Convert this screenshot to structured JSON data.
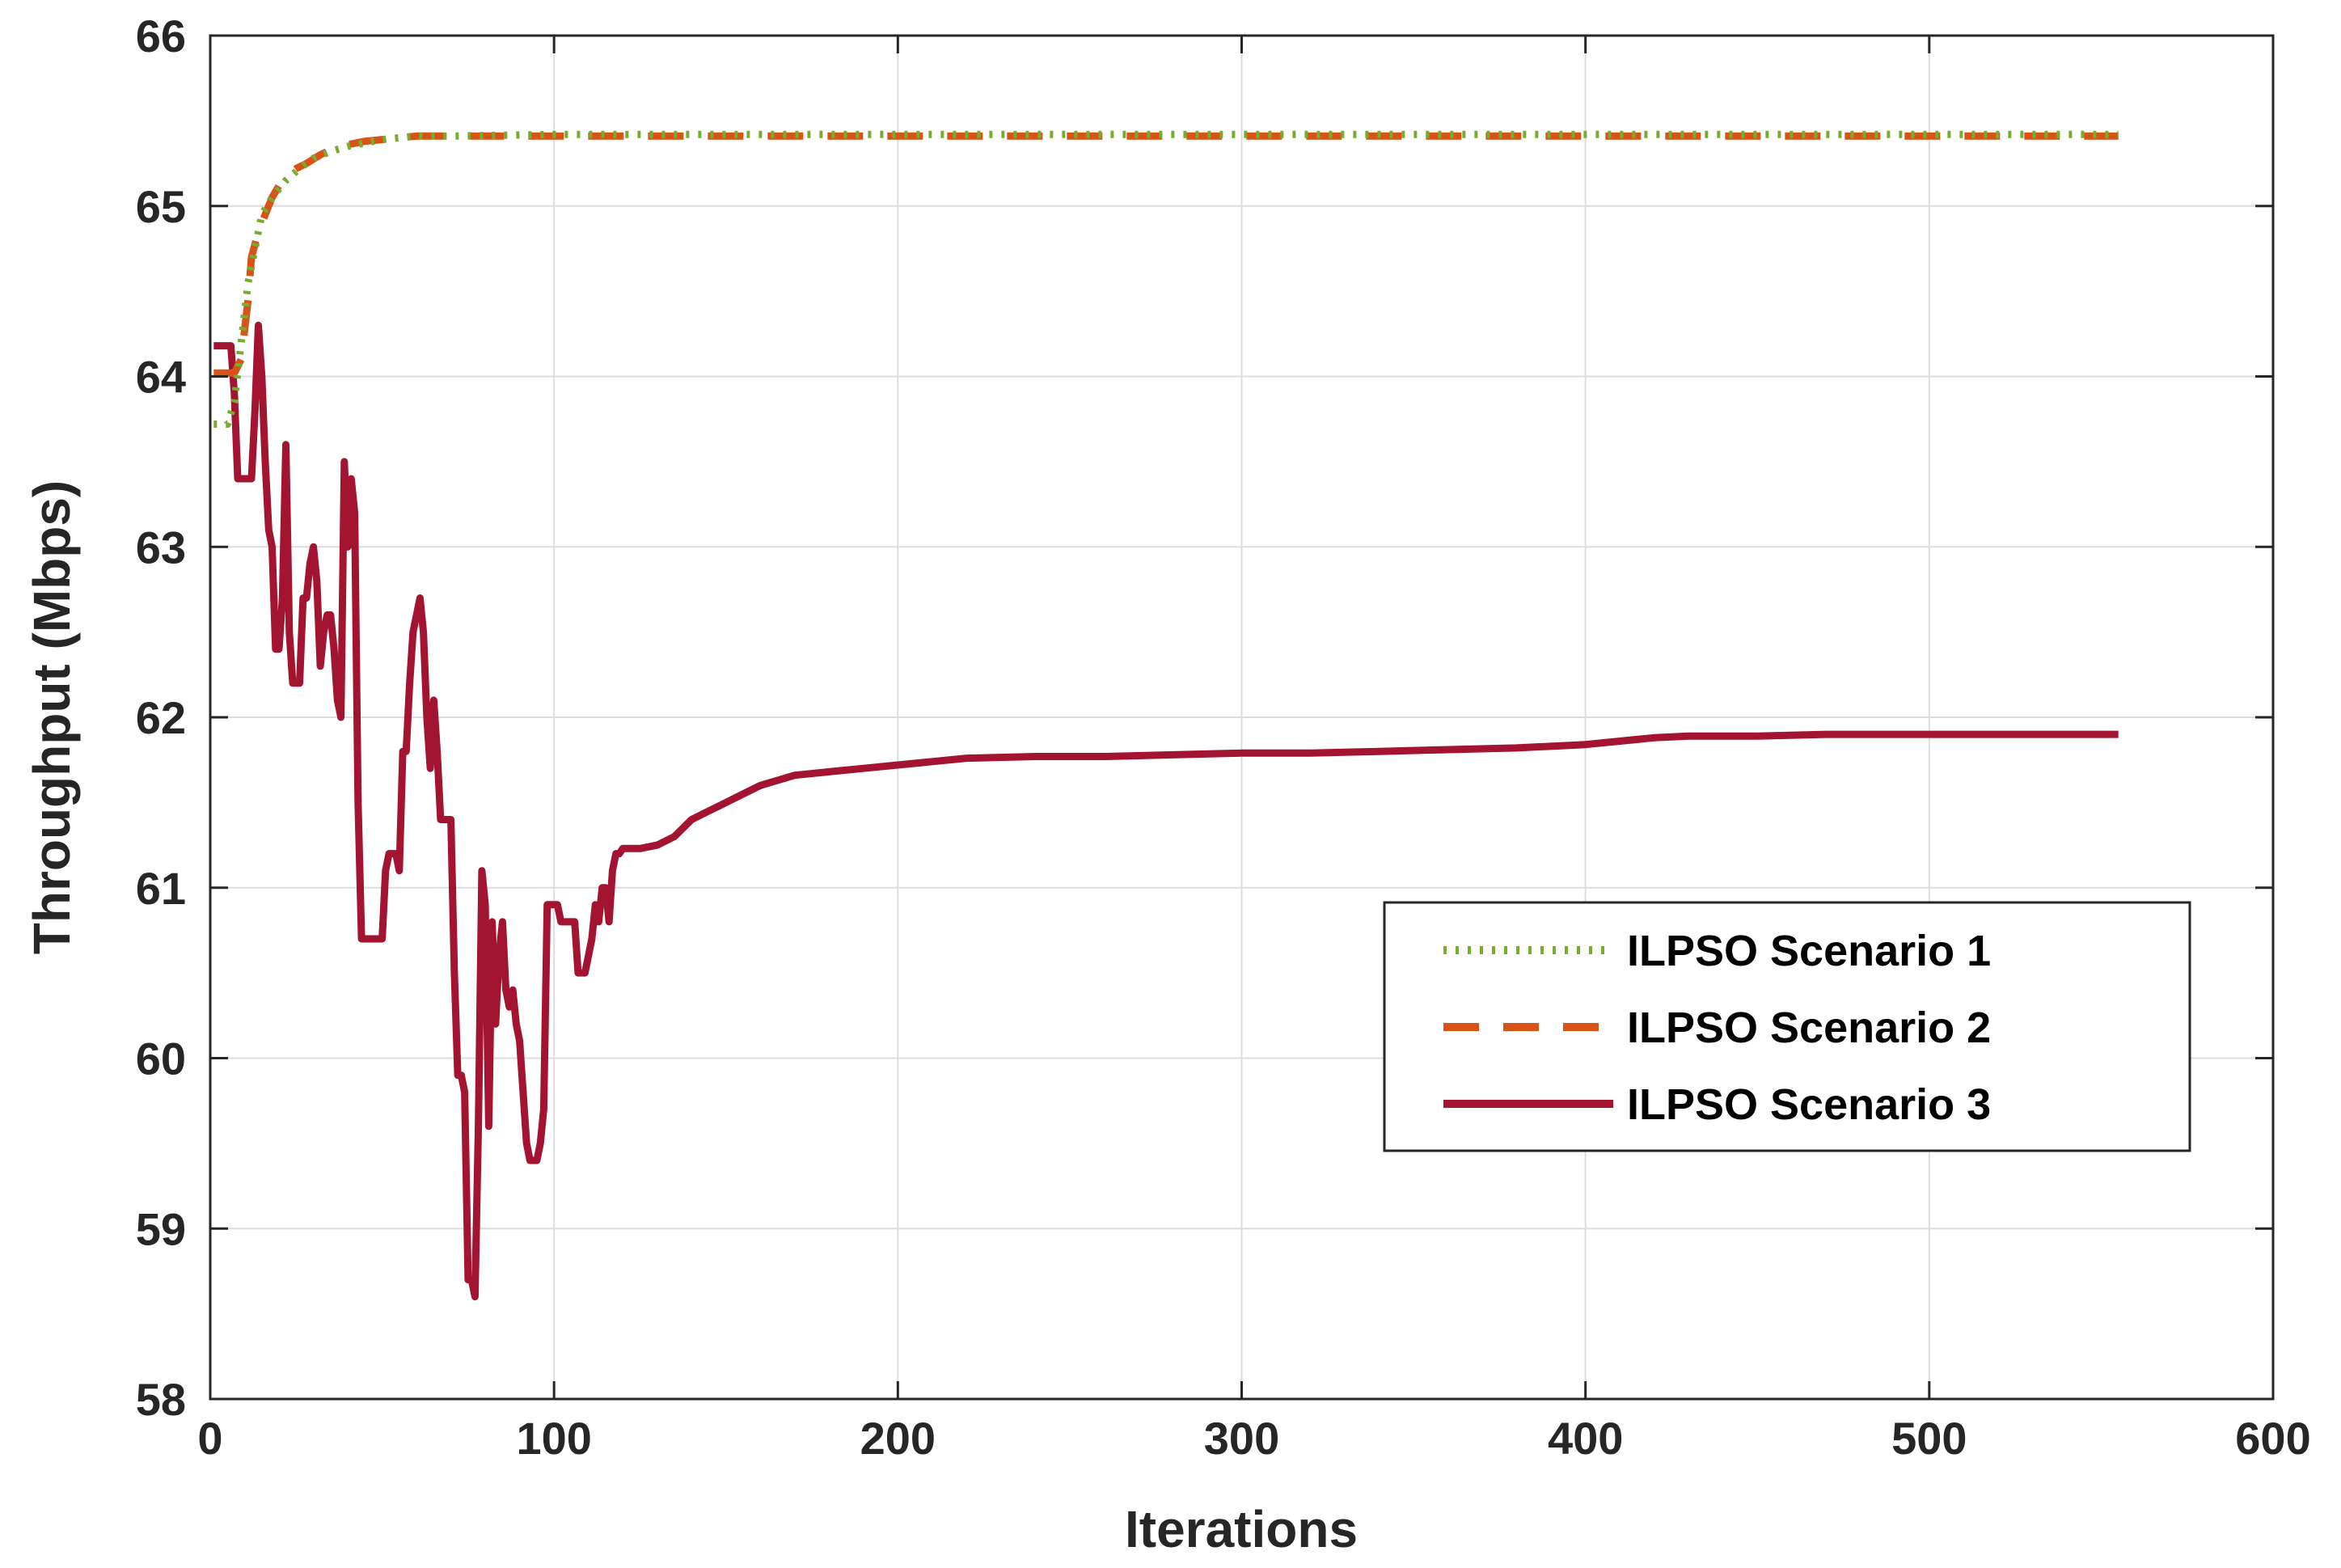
{
  "chart_data": {
    "type": "line",
    "xlabel": "Iterations",
    "ylabel": "Throughput (Mbps)",
    "xlim": [
      0,
      600
    ],
    "ylim": [
      58,
      66
    ],
    "xticks": [
      "0",
      "100",
      "200",
      "300",
      "400",
      "500",
      "600"
    ],
    "yticks": [
      "58",
      "59",
      "60",
      "61",
      "62",
      "63",
      "64",
      "65",
      "66"
    ],
    "grid": true,
    "legend_position": "center-right",
    "series": [
      {
        "name": "ILPSO Scenario 1",
        "color": "#77AC30",
        "style": "dotted",
        "points": [
          [
            1,
            63.72
          ],
          [
            5,
            63.72
          ],
          [
            7,
            63.85
          ],
          [
            9,
            64.2
          ],
          [
            11,
            64.55
          ],
          [
            13,
            64.75
          ],
          [
            15,
            64.95
          ],
          [
            18,
            65.05
          ],
          [
            22,
            65.15
          ],
          [
            26,
            65.22
          ],
          [
            30,
            65.28
          ],
          [
            35,
            65.32
          ],
          [
            40,
            65.35
          ],
          [
            45,
            65.37
          ],
          [
            50,
            65.39
          ],
          [
            55,
            65.4
          ],
          [
            60,
            65.41
          ],
          [
            70,
            65.41
          ],
          [
            100,
            65.42
          ],
          [
            200,
            65.42
          ],
          [
            300,
            65.42
          ],
          [
            400,
            65.42
          ],
          [
            500,
            65.42
          ],
          [
            555,
            65.42
          ]
        ]
      },
      {
        "name": "ILPSO Scenario 2",
        "color": "#D95319",
        "style": "dashed",
        "points": [
          [
            1,
            64.02
          ],
          [
            7,
            64.02
          ],
          [
            9,
            64.1
          ],
          [
            11,
            64.45
          ],
          [
            12,
            64.7
          ],
          [
            14,
            64.85
          ],
          [
            16,
            64.95
          ],
          [
            18,
            65.05
          ],
          [
            20,
            65.12
          ],
          [
            22,
            65.18
          ],
          [
            25,
            65.22
          ],
          [
            28,
            65.25
          ],
          [
            32,
            65.3
          ],
          [
            36,
            65.34
          ],
          [
            40,
            65.36
          ],
          [
            45,
            65.38
          ],
          [
            50,
            65.39
          ],
          [
            55,
            65.4
          ],
          [
            60,
            65.41
          ],
          [
            70,
            65.41
          ],
          [
            100,
            65.41
          ],
          [
            200,
            65.41
          ],
          [
            300,
            65.41
          ],
          [
            400,
            65.41
          ],
          [
            500,
            65.41
          ],
          [
            555,
            65.41
          ]
        ]
      },
      {
        "name": "ILPSO Scenario 3",
        "color": "#A2142F",
        "style": "solid",
        "points": [
          [
            1,
            64.18
          ],
          [
            6,
            64.18
          ],
          [
            7,
            63.9
          ],
          [
            8,
            63.4
          ],
          [
            10,
            63.4
          ],
          [
            12,
            63.4
          ],
          [
            13,
            63.8
          ],
          [
            14,
            64.3
          ],
          [
            15,
            64.0
          ],
          [
            16,
            63.5
          ],
          [
            17,
            63.1
          ],
          [
            18,
            63.0
          ],
          [
            19,
            62.4
          ],
          [
            20,
            62.4
          ],
          [
            21,
            62.7
          ],
          [
            22,
            63.6
          ],
          [
            23,
            62.5
          ],
          [
            24,
            62.2
          ],
          [
            26,
            62.2
          ],
          [
            27,
            62.7
          ],
          [
            28,
            62.7
          ],
          [
            29,
            62.9
          ],
          [
            30,
            63.0
          ],
          [
            31,
            62.8
          ],
          [
            32,
            62.3
          ],
          [
            33,
            62.5
          ],
          [
            34,
            62.6
          ],
          [
            35,
            62.6
          ],
          [
            36,
            62.4
          ],
          [
            37,
            62.1
          ],
          [
            38,
            62.0
          ],
          [
            39,
            63.5
          ],
          [
            40,
            63.0
          ],
          [
            41,
            63.4
          ],
          [
            42,
            63.2
          ],
          [
            43,
            61.5
          ],
          [
            44,
            60.7
          ],
          [
            45,
            60.7
          ],
          [
            47,
            60.7
          ],
          [
            50,
            60.7
          ],
          [
            51,
            61.1
          ],
          [
            52,
            61.2
          ],
          [
            54,
            61.2
          ],
          [
            55,
            61.1
          ],
          [
            56,
            61.8
          ],
          [
            57,
            61.8
          ],
          [
            58,
            62.2
          ],
          [
            59,
            62.5
          ],
          [
            60,
            62.6
          ],
          [
            61,
            62.7
          ],
          [
            62,
            62.5
          ],
          [
            63,
            62.0
          ],
          [
            64,
            61.7
          ],
          [
            65,
            62.1
          ],
          [
            66,
            61.8
          ],
          [
            67,
            61.4
          ],
          [
            68,
            61.4
          ],
          [
            70,
            61.4
          ],
          [
            71,
            60.5
          ],
          [
            72,
            59.9
          ],
          [
            73,
            59.9
          ],
          [
            74,
            59.8
          ],
          [
            75,
            58.7
          ],
          [
            76,
            58.7
          ],
          [
            77,
            58.6
          ],
          [
            78,
            59.6
          ],
          [
            79,
            61.1
          ],
          [
            80,
            60.9
          ],
          [
            81,
            59.6
          ],
          [
            82,
            60.8
          ],
          [
            83,
            60.2
          ],
          [
            84,
            60.6
          ],
          [
            85,
            60.8
          ],
          [
            86,
            60.4
          ],
          [
            87,
            60.3
          ],
          [
            88,
            60.4
          ],
          [
            89,
            60.2
          ],
          [
            90,
            60.1
          ],
          [
            91,
            59.8
          ],
          [
            92,
            59.5
          ],
          [
            93,
            59.4
          ],
          [
            95,
            59.4
          ],
          [
            96,
            59.5
          ],
          [
            97,
            59.7
          ],
          [
            98,
            60.9
          ],
          [
            99,
            60.9
          ],
          [
            100,
            60.9
          ],
          [
            101,
            60.9
          ],
          [
            102,
            60.8
          ],
          [
            103,
            60.8
          ],
          [
            105,
            60.8
          ],
          [
            106,
            60.8
          ],
          [
            107,
            60.5
          ],
          [
            109,
            60.5
          ],
          [
            110,
            60.6
          ],
          [
            111,
            60.7
          ],
          [
            112,
            60.9
          ],
          [
            113,
            60.8
          ],
          [
            114,
            61.0
          ],
          [
            115,
            61.0
          ],
          [
            116,
            60.8
          ],
          [
            117,
            61.1
          ],
          [
            118,
            61.2
          ],
          [
            119,
            61.2
          ],
          [
            120,
            61.23
          ],
          [
            125,
            61.23
          ],
          [
            130,
            61.25
          ],
          [
            135,
            61.3
          ],
          [
            140,
            61.4
          ],
          [
            145,
            61.45
          ],
          [
            150,
            61.5
          ],
          [
            155,
            61.55
          ],
          [
            160,
            61.6
          ],
          [
            170,
            61.66
          ],
          [
            180,
            61.68
          ],
          [
            190,
            61.7
          ],
          [
            200,
            61.72
          ],
          [
            210,
            61.74
          ],
          [
            220,
            61.76
          ],
          [
            240,
            61.77
          ],
          [
            260,
            61.77
          ],
          [
            280,
            61.78
          ],
          [
            300,
            61.79
          ],
          [
            320,
            61.79
          ],
          [
            340,
            61.8
          ],
          [
            360,
            61.81
          ],
          [
            380,
            61.82
          ],
          [
            400,
            61.84
          ],
          [
            410,
            61.86
          ],
          [
            420,
            61.88
          ],
          [
            430,
            61.89
          ],
          [
            450,
            61.89
          ],
          [
            470,
            61.9
          ],
          [
            500,
            61.9
          ],
          [
            555,
            61.9
          ]
        ]
      }
    ]
  }
}
